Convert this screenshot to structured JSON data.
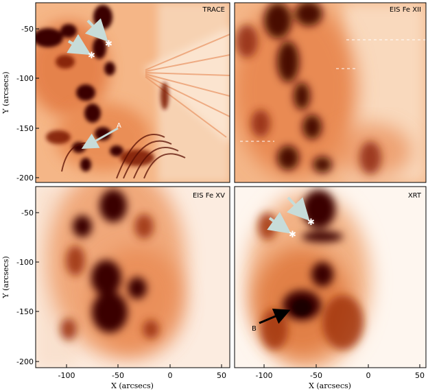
{
  "figure": {
    "axes": {
      "x_label": "X (arcsecs)",
      "y_label": "Y (arcsecs)",
      "x_ticks": [
        "-100",
        "-50",
        "0",
        "50"
      ],
      "y_ticks": [
        "-50",
        "-100",
        "-150",
        "-200"
      ]
    },
    "panels": [
      {
        "id": "trace",
        "title": "TRACE"
      },
      {
        "id": "eis-fe-xii",
        "title": "EIS Fe XII"
      },
      {
        "id": "eis-fe-xv",
        "title": "EIS Fe XV"
      },
      {
        "id": "xrt",
        "title": "XRT"
      }
    ],
    "annotations": {
      "trace_letter": "A",
      "xrt_letter": "B"
    },
    "colors": {
      "background": "#fff4ea",
      "mid": "#e8834a",
      "dark": "#3a0600",
      "arrow": "#c7dcd9",
      "star": "#ffffff"
    }
  }
}
